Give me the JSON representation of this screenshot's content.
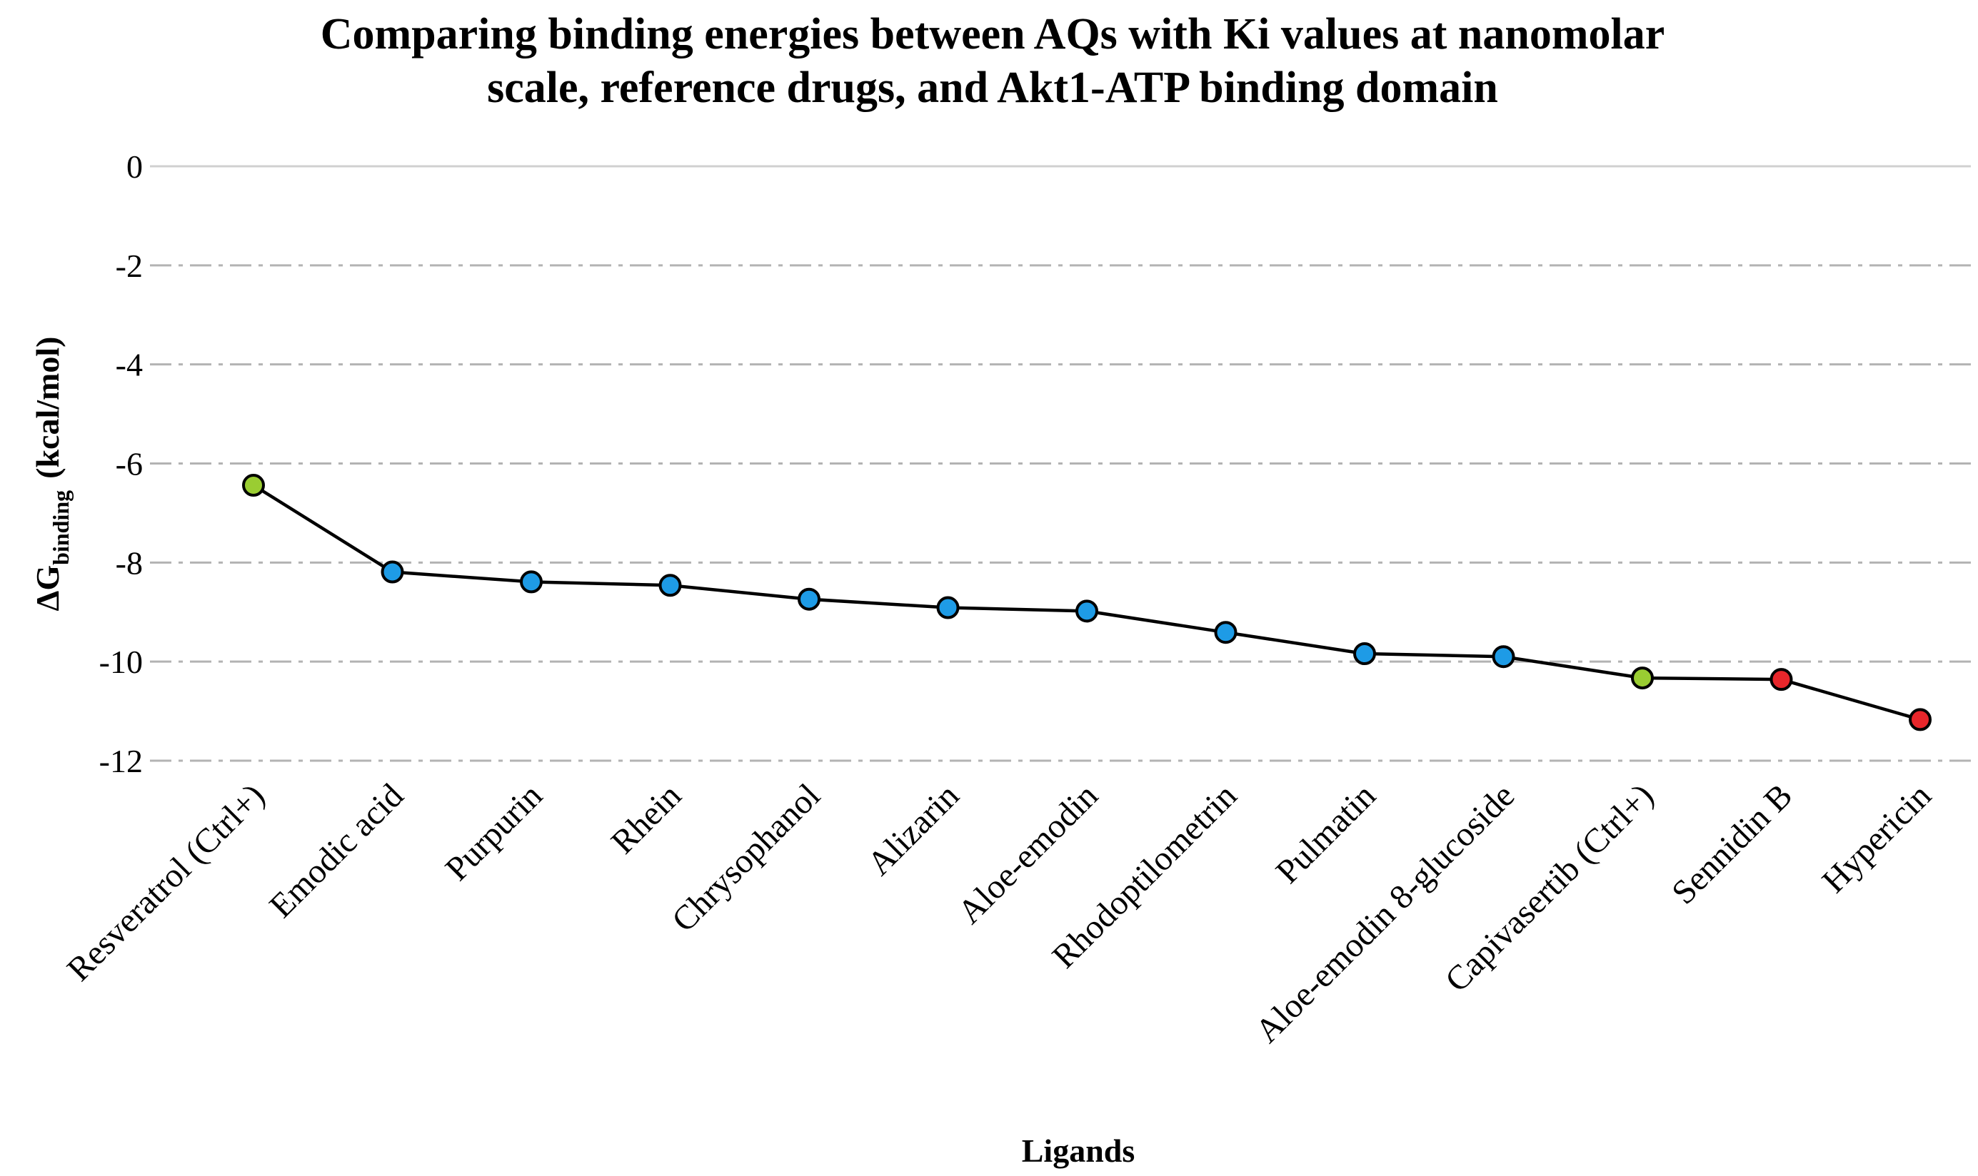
{
  "chart_data": {
    "type": "line",
    "title": [
      "Comparing binding energies between AQs with Ki values at nanomolar",
      "scale, reference drugs, and Akt1-ATP binding domain"
    ],
    "xlabel": "Ligands",
    "ylabel": {
      "main": "ΔG",
      "subscript": "binding",
      "units": "(kcal/mol)"
    },
    "ylim": [
      -12,
      0
    ],
    "yticks": [
      0,
      -2,
      -4,
      -6,
      -8,
      -10,
      -12
    ],
    "ytick_labels": [
      "0",
      "-2",
      "-4",
      "-6",
      "-8",
      "-10",
      "-12"
    ],
    "grid": true,
    "legend": "none",
    "categories": [
      "Resveratrol (Ctrl+)",
      "Emodic acid",
      "Purpurin",
      "Rhein",
      "Chrysophanol",
      "Alizarin",
      "Aloe-emodin",
      "Rhodoptilometrin",
      "Pulmatin",
      "Aloe-emodin 8-glucoside",
      "Capivasertib  (Ctrl+)",
      "Sennidin B",
      "Hypericin"
    ],
    "values": [
      -6.44,
      -8.19,
      -8.39,
      -8.46,
      -8.74,
      -8.91,
      -8.98,
      -9.41,
      -9.84,
      -9.9,
      -10.33,
      -10.36,
      -11.17
    ],
    "point_colors": [
      "#9acd32",
      "#1e9be6",
      "#1e9be6",
      "#1e9be6",
      "#1e9be6",
      "#1e9be6",
      "#1e9be6",
      "#1e9be6",
      "#1e9be6",
      "#1e9be6",
      "#9acd32",
      "#e8262b",
      "#e8262b"
    ]
  }
}
